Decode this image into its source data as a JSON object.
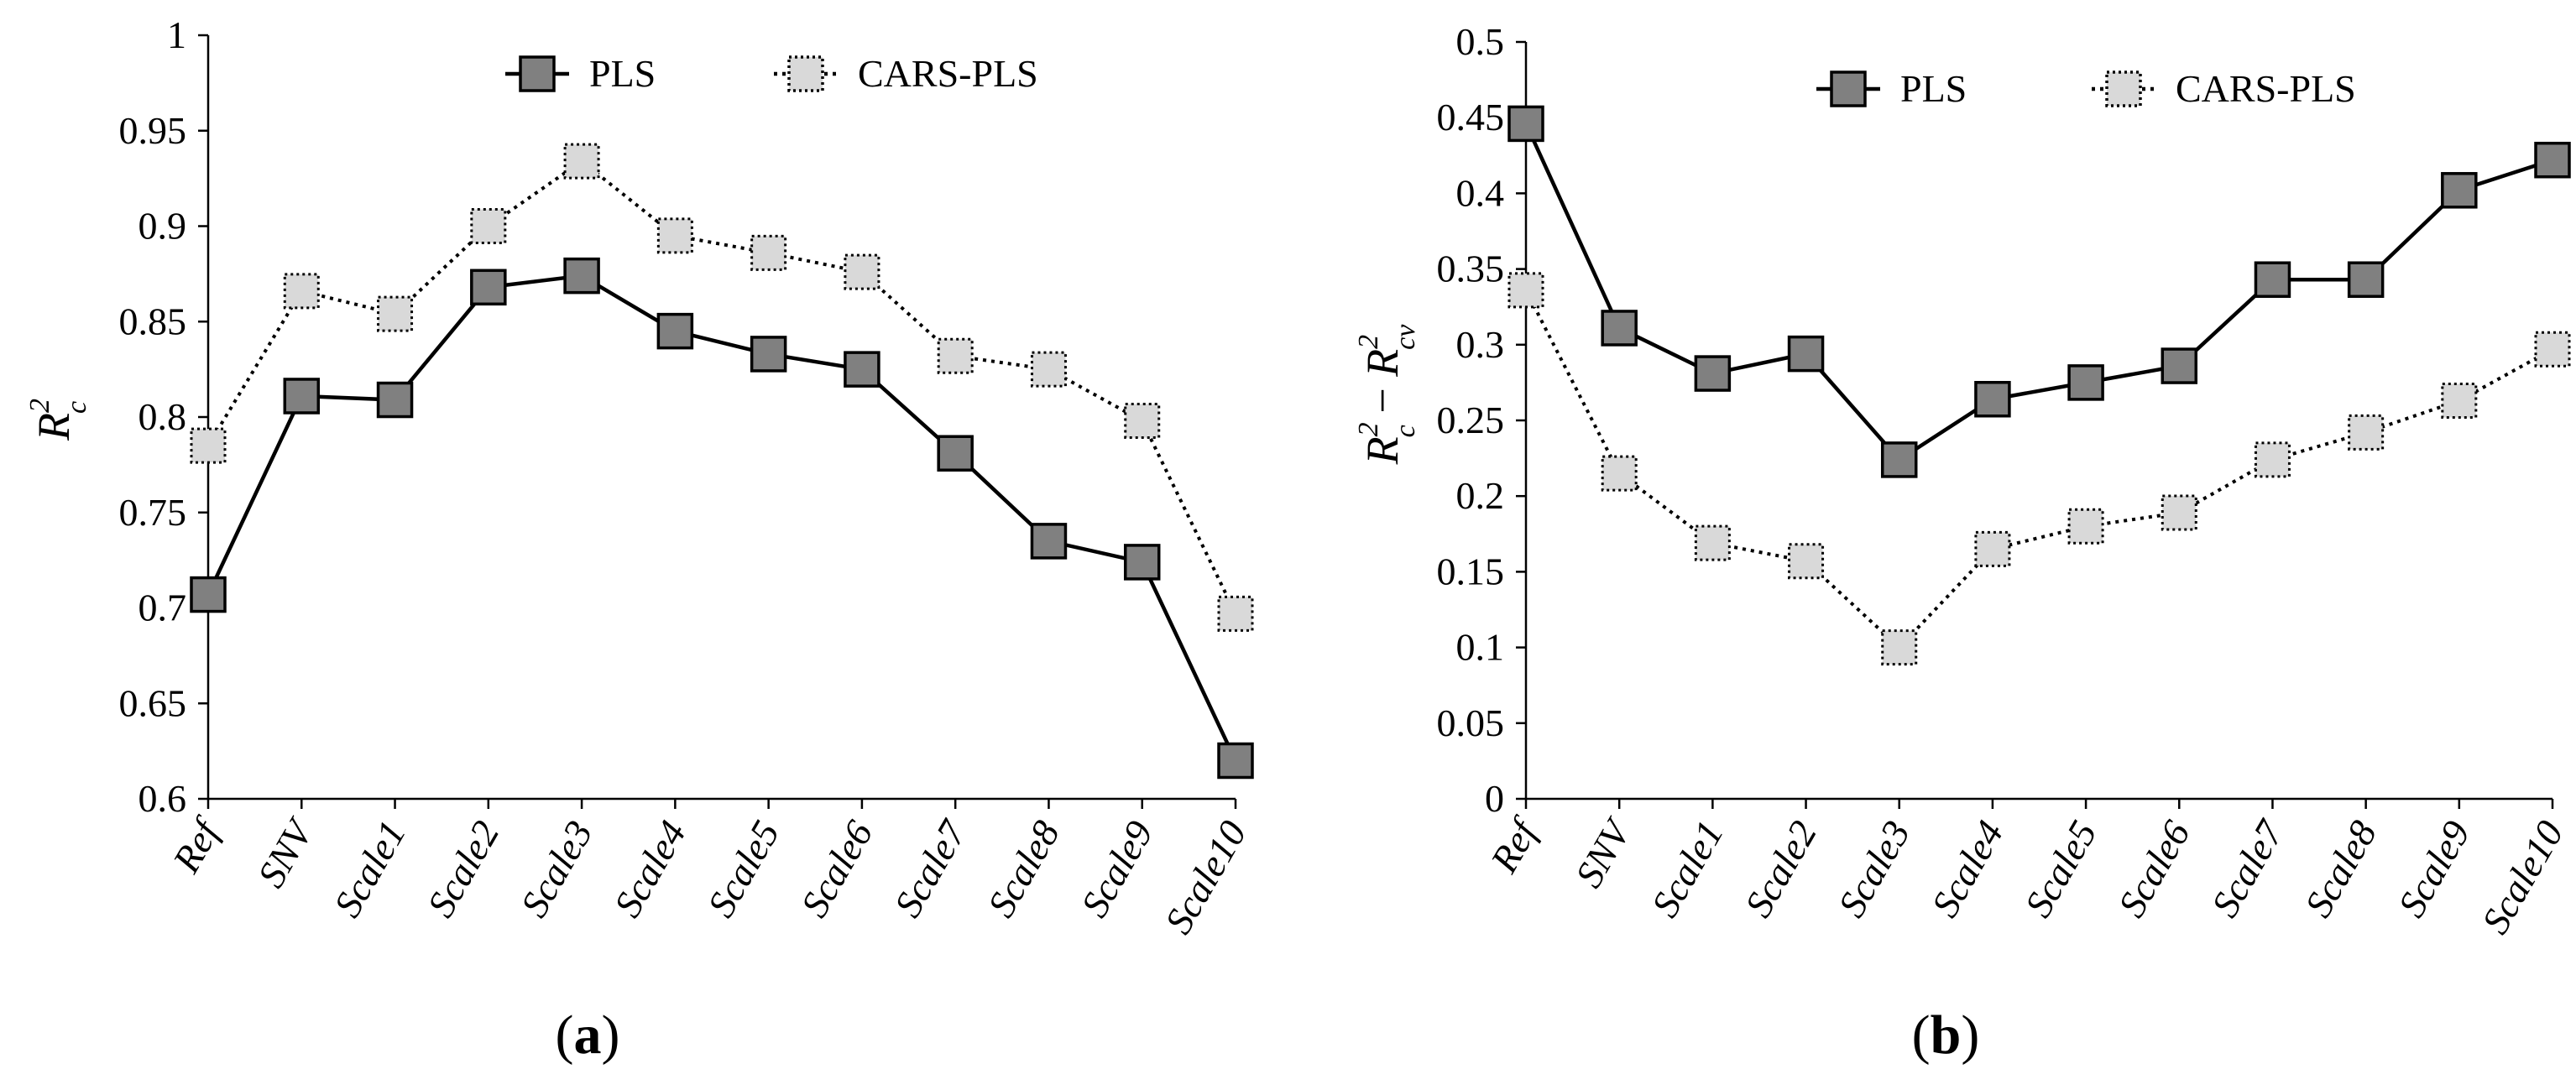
{
  "chart_data": [
    {
      "type": "line",
      "panel_label": "(a)",
      "panel_letter": "a",
      "ylabel": "R_c^2",
      "ylabel_base": "R",
      "ylabel_sup": "2",
      "ylabel_sub": "c",
      "ylim": [
        0.6,
        1.0
      ],
      "yticks": [
        "0.6",
        "0.65",
        "0.7",
        "0.75",
        "0.8",
        "0.85",
        "0.9",
        "0.95",
        "1"
      ],
      "categories": [
        "Ref",
        "SNV",
        "Scale1",
        "Scale2",
        "Scale3",
        "Scale4",
        "Scale5",
        "Scale6",
        "Scale7",
        "Scale8",
        "Scale9",
        "Scale10"
      ],
      "legend_position": "top",
      "series": [
        {
          "name": "PLS",
          "style": "solid",
          "marker_fill": "#808080",
          "values": [
            0.707,
            0.811,
            0.809,
            0.868,
            0.874,
            0.845,
            0.833,
            0.825,
            0.781,
            0.735,
            0.724,
            0.62
          ]
        },
        {
          "name": "CARS-PLS",
          "style": "dotted",
          "marker_fill": "#d9d9d9",
          "values": [
            0.785,
            0.866,
            0.854,
            0.9,
            0.934,
            0.895,
            0.886,
            0.876,
            0.832,
            0.825,
            0.798,
            0.697
          ]
        }
      ]
    },
    {
      "type": "line",
      "panel_label": "(b)",
      "panel_letter": "b",
      "ylabel": "R_c^2 - R_cv^2",
      "ylabel_parts": {
        "r1": "R",
        "sup1": "2",
        "sub1": "c",
        "minus": " − ",
        "r2": "R",
        "sup2": "2",
        "sub2": "cv"
      },
      "ylim": [
        0,
        0.5
      ],
      "yticks": [
        "0",
        "0.05",
        "0.1",
        "0.15",
        "0.2",
        "0.25",
        "0.3",
        "0.35",
        "0.4",
        "0.45",
        "0.5"
      ],
      "categories": [
        "Ref",
        "SNV",
        "Scale1",
        "Scale2",
        "Scale3",
        "Scale4",
        "Scale5",
        "Scale6",
        "Scale7",
        "Scale8",
        "Scale9",
        "Scale10"
      ],
      "legend_position": "top",
      "series": [
        {
          "name": "PLS",
          "style": "solid",
          "marker_fill": "#808080",
          "values": [
            0.446,
            0.311,
            0.281,
            0.294,
            0.224,
            0.264,
            0.275,
            0.286,
            0.343,
            0.343,
            0.402,
            0.422
          ]
        },
        {
          "name": "CARS-PLS",
          "style": "dotted",
          "marker_fill": "#d9d9d9",
          "values": [
            0.336,
            0.215,
            0.169,
            0.157,
            0.1,
            0.165,
            0.18,
            0.189,
            0.224,
            0.242,
            0.263,
            0.297
          ]
        }
      ]
    }
  ]
}
